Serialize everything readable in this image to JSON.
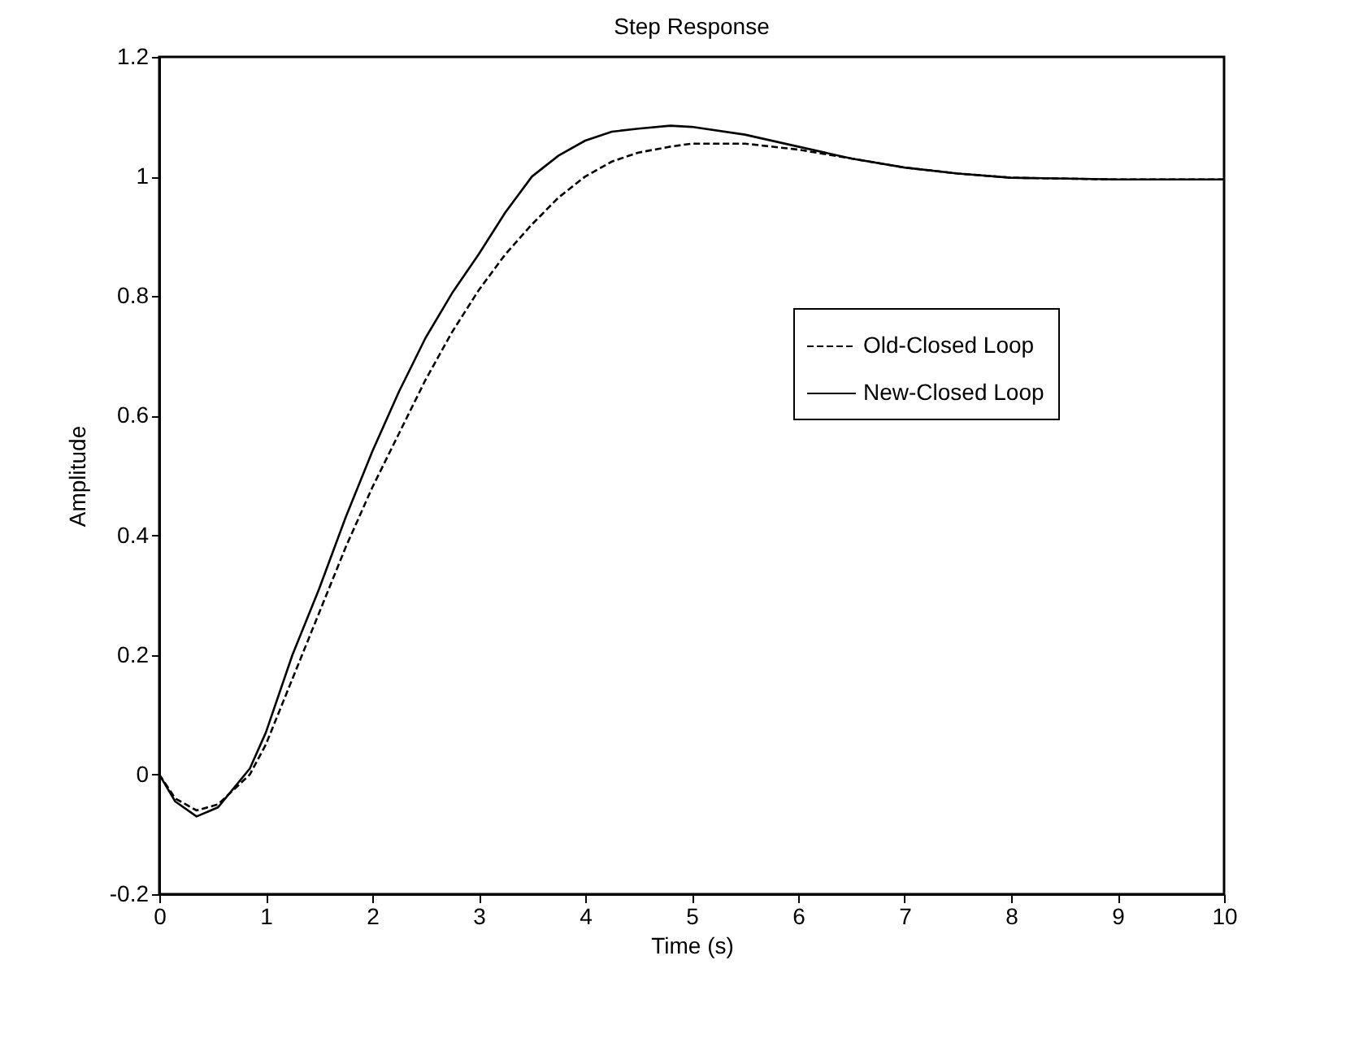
{
  "chart_data": {
    "type": "line",
    "title": "Step Response",
    "xlabel": "Time (s)",
    "ylabel": "Amplitude",
    "xlim": [
      0,
      10
    ],
    "xticks": [
      0,
      1,
      2,
      3,
      4,
      5,
      6,
      7,
      8,
      9,
      10
    ],
    "ylim": [
      -0.2,
      1.2
    ],
    "yticks": [
      -0.2,
      0,
      0.2,
      0.4,
      0.6,
      0.8,
      1,
      1.2
    ],
    "legend": "right",
    "x": [
      0,
      0.15,
      0.35,
      0.55,
      0.85,
      1,
      1.25,
      1.5,
      1.75,
      2,
      2.25,
      2.5,
      2.75,
      3,
      3.25,
      3.5,
      3.75,
      4,
      4.25,
      4.5,
      4.8,
      5,
      5.5,
      6,
      6.5,
      7,
      7.5,
      8,
      9,
      10
    ],
    "series": [
      {
        "name": "Old-Closed Loop",
        "color": "#000000",
        "line_style": "dashed",
        "values": [
          0,
          -0.04,
          -0.06,
          -0.05,
          0,
          0.05,
          0.16,
          0.27,
          0.38,
          0.48,
          0.57,
          0.66,
          0.74,
          0.81,
          0.87,
          0.92,
          0.965,
          1.0,
          1.025,
          1.04,
          1.05,
          1.055,
          1.055,
          1.045,
          1.03,
          1.015,
          1.005,
          0.998,
          0.995,
          0.995
        ]
      },
      {
        "name": "New-Closed Loop",
        "color": "#000000",
        "line_style": "solid",
        "values": [
          0,
          -0.045,
          -0.07,
          -0.055,
          0.01,
          0.07,
          0.2,
          0.31,
          0.43,
          0.54,
          0.64,
          0.73,
          0.805,
          0.87,
          0.94,
          1.0,
          1.035,
          1.06,
          1.075,
          1.08,
          1.085,
          1.083,
          1.07,
          1.05,
          1.03,
          1.015,
          1.005,
          0.998,
          0.995,
          0.995
        ]
      }
    ]
  }
}
